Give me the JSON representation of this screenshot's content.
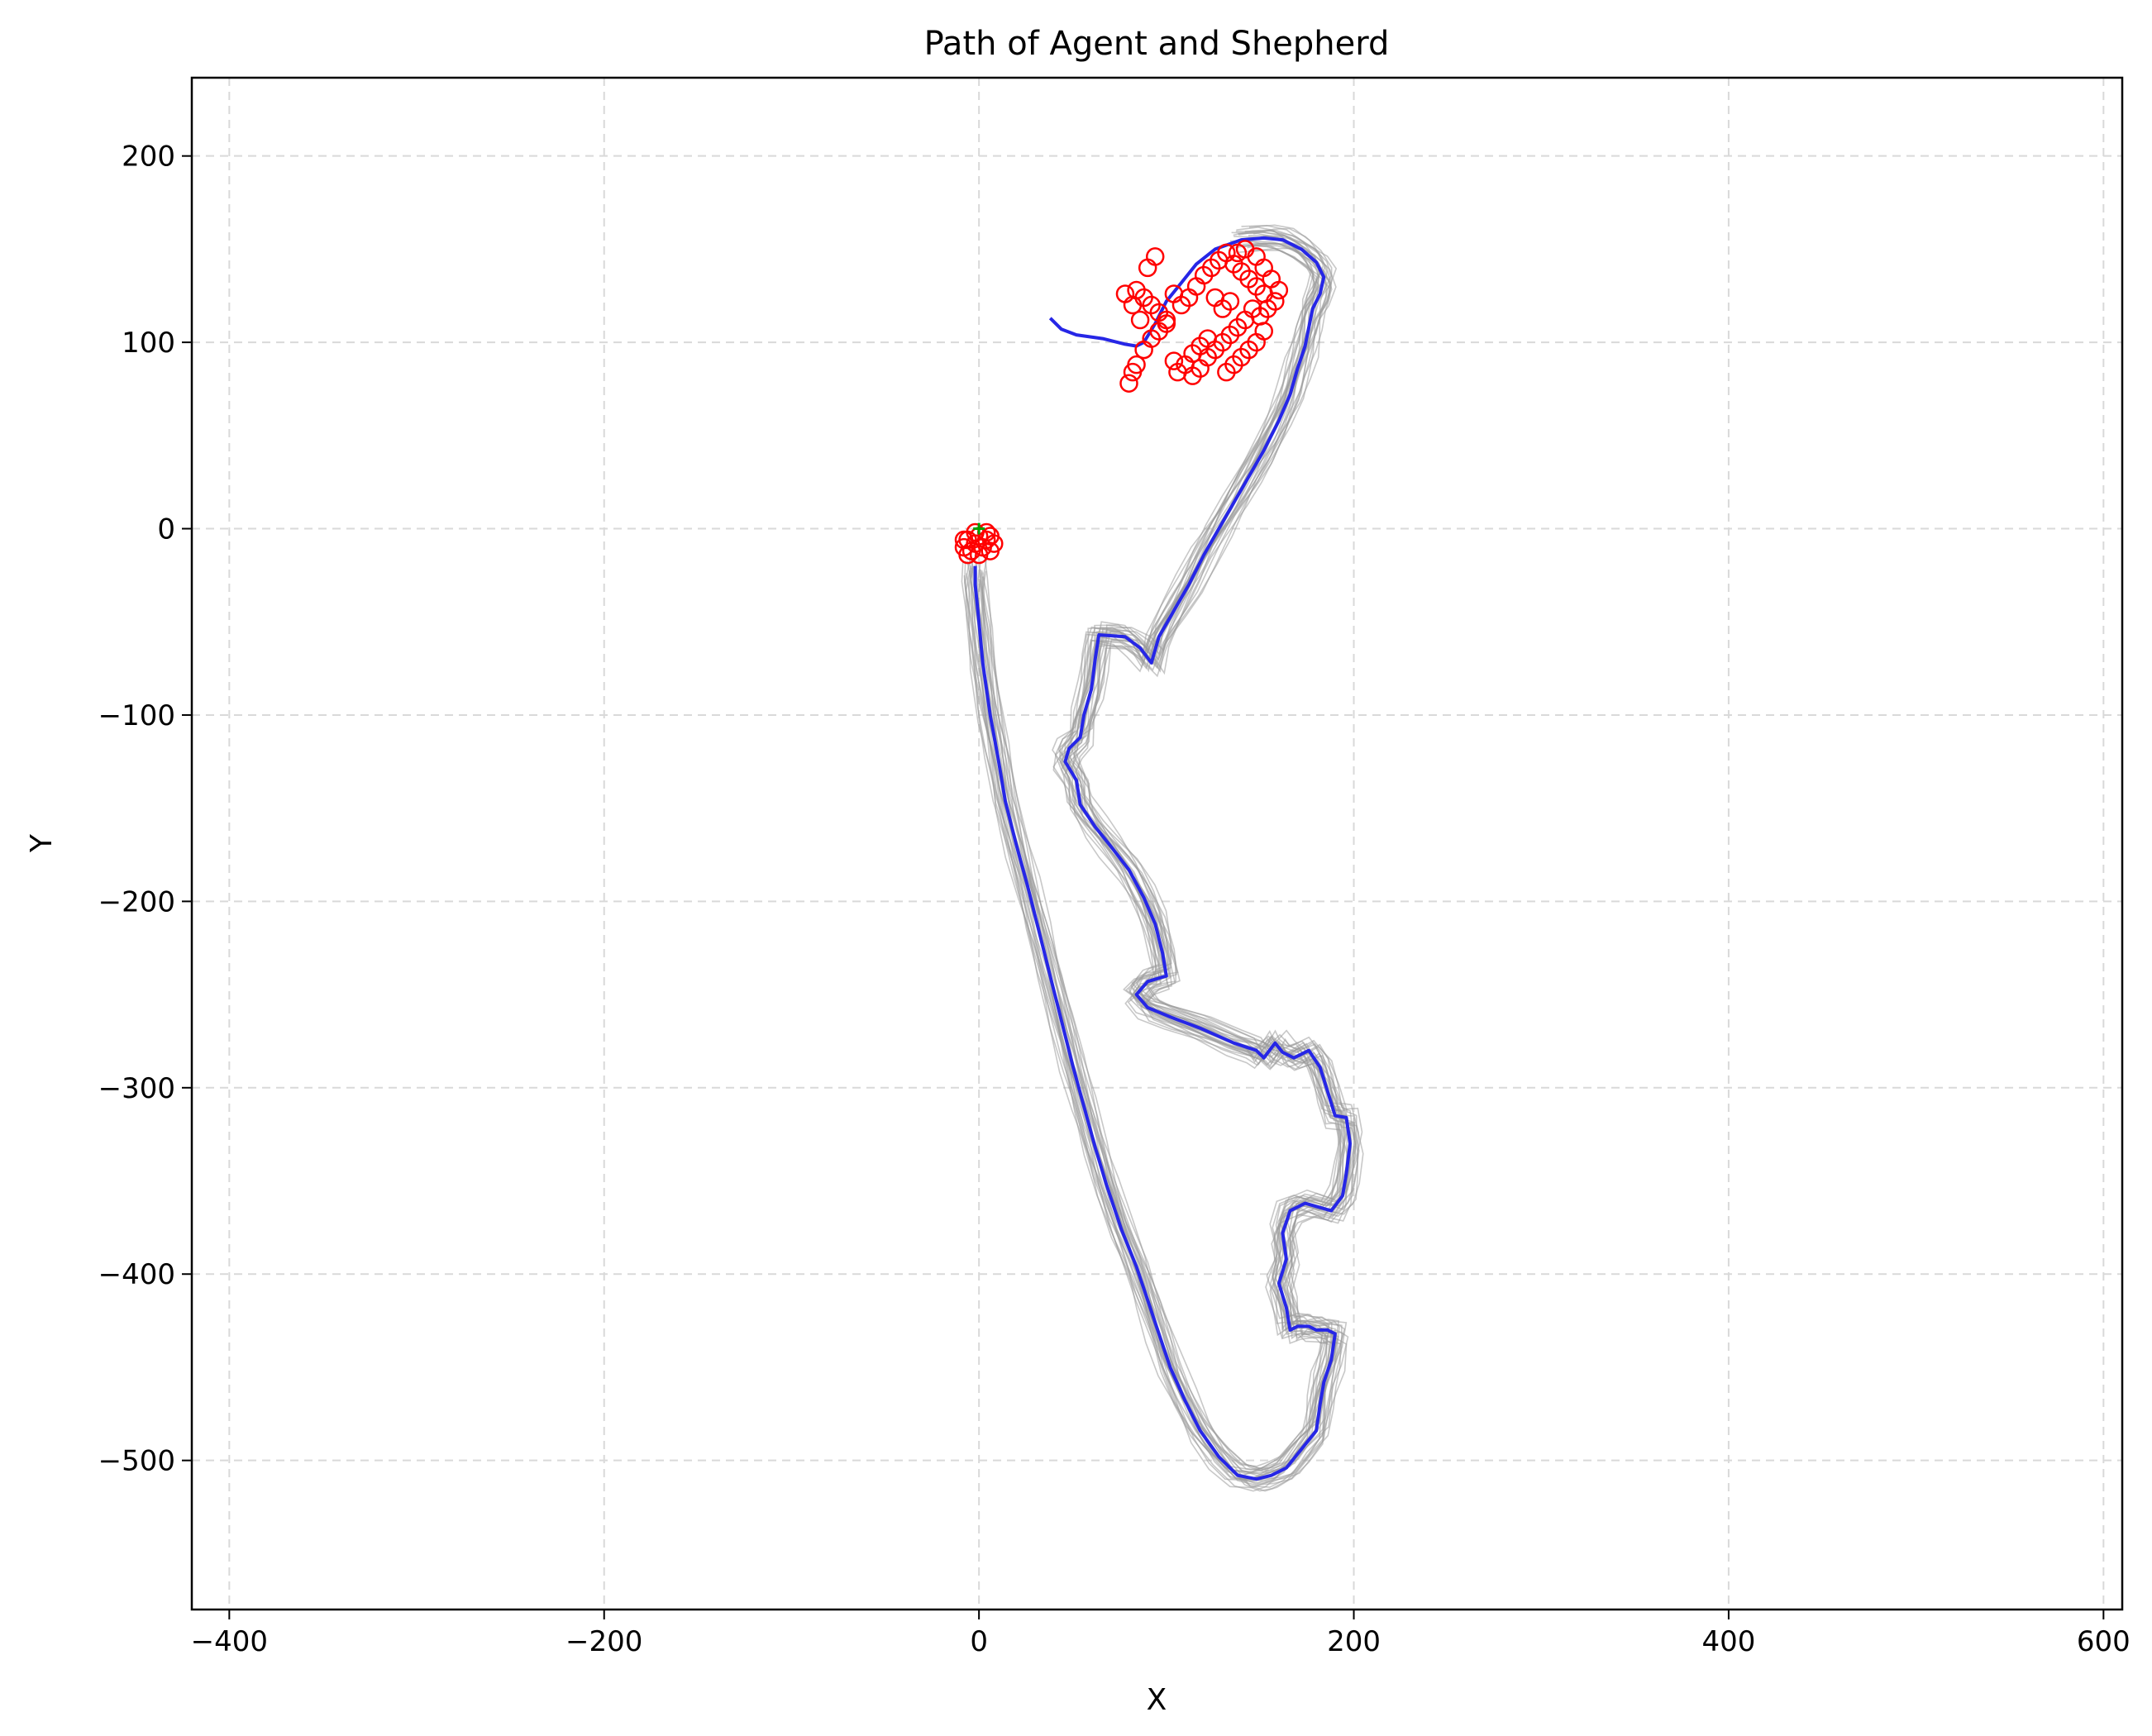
{
  "chart_data": {
    "type": "line",
    "title": "Path of Agent and Shepherd",
    "xlabel": "X",
    "ylabel": "Y",
    "xlim": [
      -420,
      610
    ],
    "ylim": [
      -580,
      242
    ],
    "xticks": [
      -400,
      -200,
      0,
      200,
      400,
      600
    ],
    "yticks": [
      200,
      100,
      0,
      -100,
      -200,
      -300,
      -400,
      -500
    ],
    "xtick_labels": [
      "−400",
      "−200",
      "0",
      "200",
      "400",
      "600"
    ],
    "ytick_labels": [
      "200",
      "100",
      "0",
      "−100",
      "−200",
      "−300",
      "−400",
      "−500"
    ],
    "grid": true,
    "colors": {
      "shepherd": "#2626e6",
      "sheep_paths": "#9a9a9a",
      "sheep_markers": "#ff0000",
      "start_marker": "#00a000"
    },
    "series": [
      {
        "style": "blue-line",
        "points": [
          [
            38,
            113
          ],
          [
            44,
            107
          ],
          [
            52,
            104
          ],
          [
            66,
            102
          ],
          [
            78,
            99
          ],
          [
            84,
            98
          ],
          [
            88,
            100
          ],
          [
            94,
            110
          ],
          [
            100,
            122
          ],
          [
            108,
            132
          ],
          [
            116,
            142
          ],
          [
            126,
            150
          ],
          [
            140,
            155
          ],
          [
            152,
            156
          ],
          [
            162,
            155
          ],
          [
            172,
            150
          ],
          [
            180,
            143
          ],
          [
            184,
            135
          ],
          [
            182,
            126
          ],
          [
            178,
            118
          ],
          [
            176,
            108
          ],
          [
            174,
            98
          ],
          [
            170,
            86
          ],
          [
            166,
            72
          ],
          [
            160,
            58
          ],
          [
            152,
            42
          ],
          [
            144,
            28
          ],
          [
            136,
            14
          ],
          [
            128,
            0
          ],
          [
            120,
            -14
          ],
          [
            112,
            -30
          ],
          [
            104,
            -44
          ],
          [
            96,
            -58
          ],
          [
            92,
            -72
          ],
          [
            86,
            -64
          ],
          [
            78,
            -58
          ],
          [
            64,
            -57
          ],
          [
            62,
            -70
          ],
          [
            60,
            -86
          ],
          [
            56,
            -100
          ],
          [
            54,
            -112
          ],
          [
            48,
            -118
          ],
          [
            46,
            -125
          ],
          [
            52,
            -135
          ],
          [
            54,
            -148
          ],
          [
            62,
            -160
          ],
          [
            70,
            -170
          ],
          [
            80,
            -183
          ],
          [
            88,
            -198
          ],
          [
            94,
            -212
          ],
          [
            98,
            -228
          ],
          [
            100,
            -240
          ],
          [
            90,
            -243
          ],
          [
            84,
            -250
          ],
          [
            90,
            -257
          ],
          [
            102,
            -262
          ],
          [
            118,
            -268
          ],
          [
            136,
            -276
          ],
          [
            148,
            -280
          ],
          [
            152,
            -284
          ],
          [
            158,
            -276
          ],
          [
            162,
            -281
          ],
          [
            168,
            -284
          ],
          [
            176,
            -280
          ],
          [
            182,
            -289
          ],
          [
            186,
            -302
          ],
          [
            190,
            -315
          ],
          [
            196,
            -316
          ],
          [
            198,
            -330
          ],
          [
            196,
            -346
          ],
          [
            194,
            -358
          ],
          [
            188,
            -366
          ],
          [
            174,
            -362
          ],
          [
            166,
            -366
          ],
          [
            162,
            -378
          ],
          [
            164,
            -392
          ],
          [
            160,
            -405
          ],
          [
            164,
            -418
          ],
          [
            166,
            -430
          ],
          [
            170,
            -428
          ],
          [
            176,
            -428
          ],
          [
            180,
            -430
          ],
          [
            186,
            -430
          ],
          [
            190,
            -432
          ],
          [
            188,
            -446
          ],
          [
            184,
            -458
          ],
          [
            182,
            -470
          ],
          [
            180,
            -484
          ],
          [
            172,
            -494
          ],
          [
            164,
            -504
          ],
          [
            156,
            -508
          ],
          [
            148,
            -510
          ],
          [
            138,
            -508
          ],
          [
            128,
            -498
          ],
          [
            118,
            -484
          ],
          [
            110,
            -468
          ],
          [
            102,
            -450
          ],
          [
            96,
            -432
          ],
          [
            90,
            -414
          ],
          [
            84,
            -396
          ],
          [
            76,
            -376
          ],
          [
            68,
            -352
          ],
          [
            62,
            -332
          ],
          [
            56,
            -310
          ],
          [
            50,
            -288
          ],
          [
            44,
            -264
          ],
          [
            38,
            -240
          ],
          [
            32,
            -216
          ],
          [
            26,
            -192
          ],
          [
            20,
            -170
          ],
          [
            14,
            -146
          ],
          [
            10,
            -122
          ],
          [
            6,
            -100
          ],
          [
            2,
            -72
          ],
          [
            0,
            -50
          ],
          [
            -2,
            -30
          ],
          [
            -2,
            -20
          ]
        ]
      }
    ],
    "sheep_positions": [
      [
        80,
        78
      ],
      [
        82,
        84
      ],
      [
        84,
        88
      ],
      [
        88,
        96
      ],
      [
        92,
        102
      ],
      [
        96,
        106
      ],
      [
        100,
        112
      ],
      [
        104,
        90
      ],
      [
        106,
        84
      ],
      [
        110,
        88
      ],
      [
        114,
        94
      ],
      [
        118,
        98
      ],
      [
        122,
        102
      ],
      [
        112,
        124
      ],
      [
        116,
        130
      ],
      [
        120,
        136
      ],
      [
        124,
        140
      ],
      [
        128,
        144
      ],
      [
        132,
        148
      ],
      [
        136,
        142
      ],
      [
        140,
        138
      ],
      [
        144,
        134
      ],
      [
        148,
        130
      ],
      [
        152,
        126
      ],
      [
        146,
        118
      ],
      [
        142,
        112
      ],
      [
        138,
        108
      ],
      [
        134,
        104
      ],
      [
        130,
        100
      ],
      [
        126,
        96
      ],
      [
        122,
        92
      ],
      [
        118,
        86
      ],
      [
        114,
        82
      ],
      [
        132,
        84
      ],
      [
        136,
        88
      ],
      [
        140,
        92
      ],
      [
        144,
        96
      ],
      [
        148,
        100
      ],
      [
        152,
        106
      ],
      [
        150,
        114
      ],
      [
        154,
        118
      ],
      [
        158,
        122
      ],
      [
        160,
        128
      ],
      [
        156,
        134
      ],
      [
        152,
        140
      ],
      [
        148,
        146
      ],
      [
        142,
        150
      ],
      [
        138,
        148
      ],
      [
        90,
        140
      ],
      [
        94,
        146
      ],
      [
        84,
        128
      ],
      [
        88,
        124
      ],
      [
        92,
        120
      ],
      [
        96,
        116
      ],
      [
        100,
        110
      ],
      [
        86,
        112
      ],
      [
        82,
        120
      ],
      [
        78,
        126
      ],
      [
        104,
        126
      ],
      [
        108,
        120
      ],
      [
        126,
        124
      ],
      [
        130,
        118
      ],
      [
        134,
        122
      ]
    ],
    "start_cluster": [
      [
        -8,
        -10
      ],
      [
        -6,
        -6
      ],
      [
        -4,
        -12
      ],
      [
        -2,
        -8
      ],
      [
        0,
        -4
      ],
      [
        2,
        -10
      ],
      [
        4,
        -6
      ],
      [
        6,
        -12
      ],
      [
        8,
        -8
      ],
      [
        -6,
        -14
      ],
      [
        0,
        -14
      ],
      [
        4,
        -2
      ],
      [
        -2,
        -2
      ],
      [
        6,
        -4
      ],
      [
        -8,
        -6
      ]
    ],
    "start_marker": [
      0,
      0
    ]
  }
}
